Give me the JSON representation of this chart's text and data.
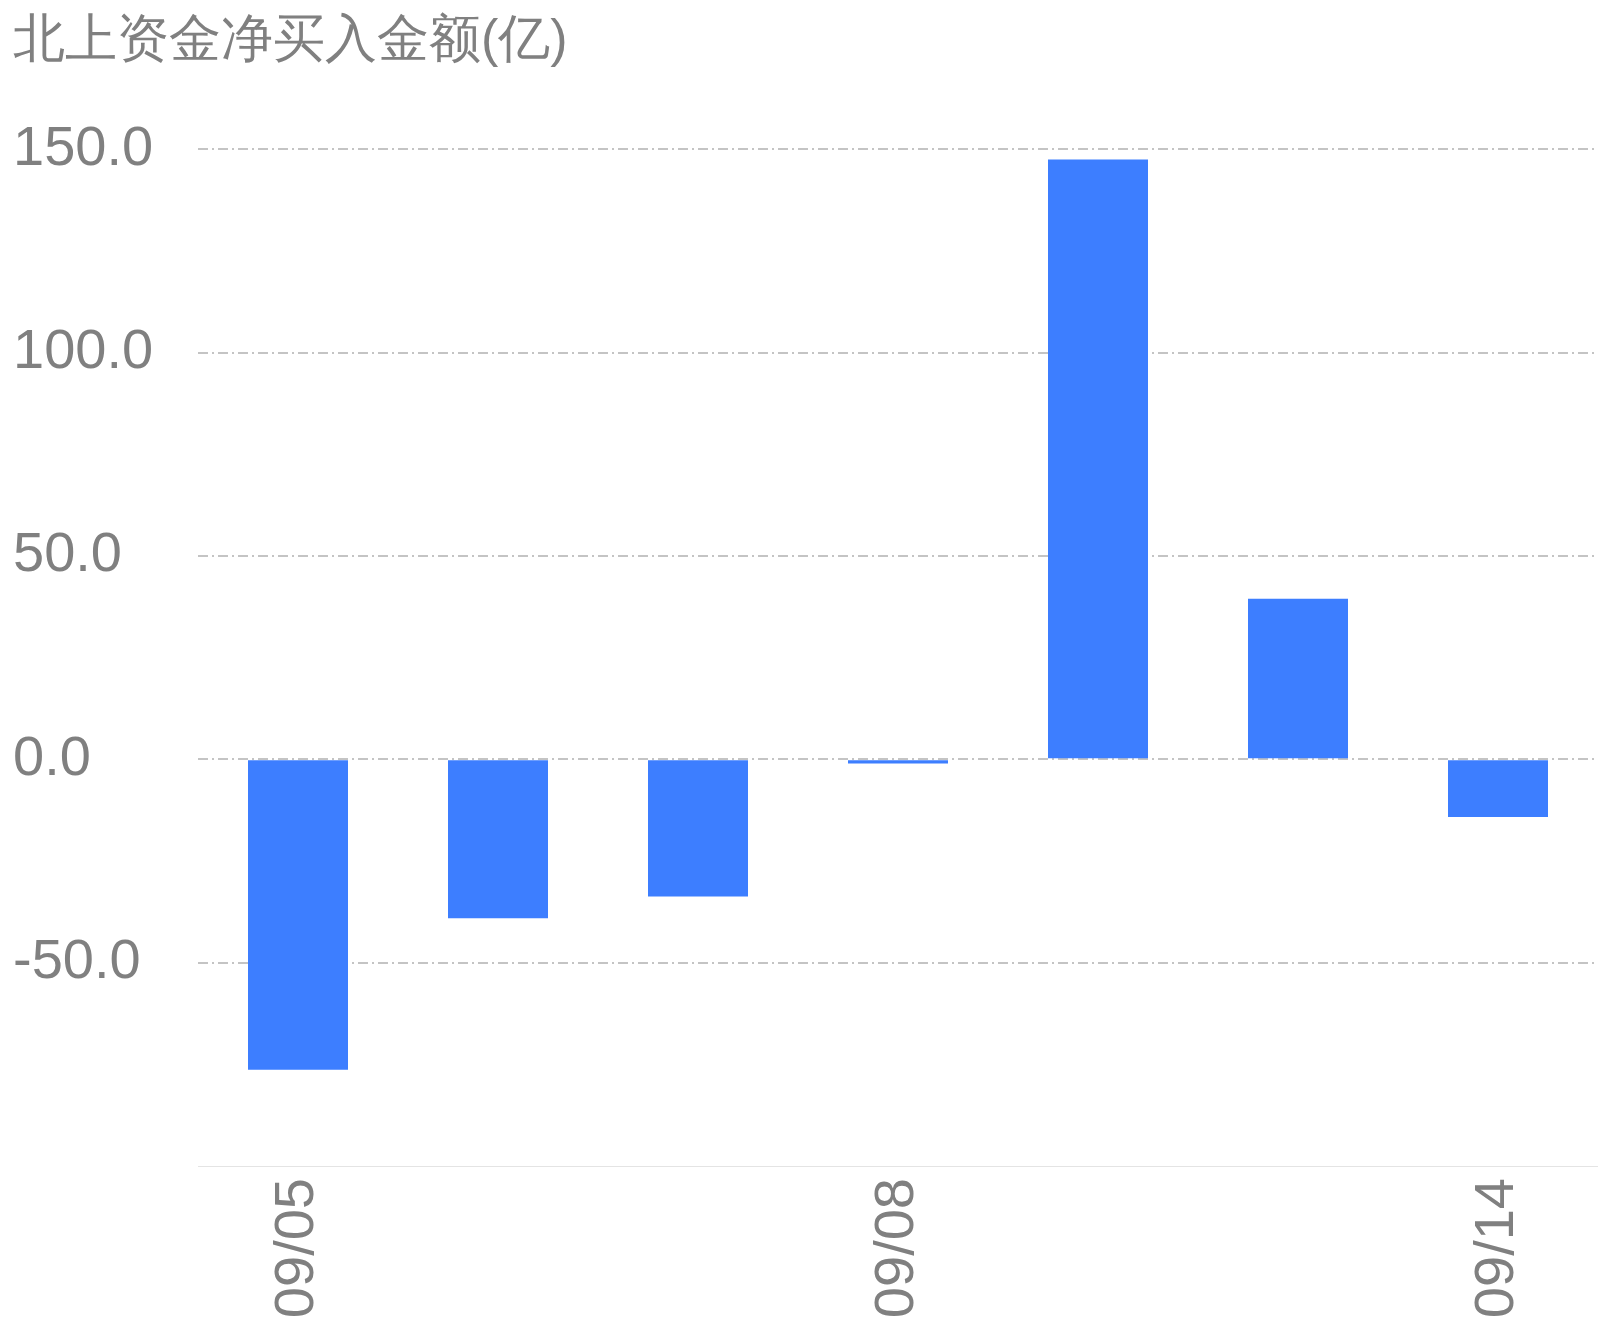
{
  "chart_data": {
    "type": "bar",
    "title": "北上资金净买入金额(亿)",
    "categories": [
      "09/05",
      null,
      null,
      "09/08",
      null,
      null,
      "09/14"
    ],
    "values": [
      -76.3,
      -39.1,
      -33.7,
      -1.0,
      147.5,
      39.5,
      -14.2
    ],
    "color": "#3d7eff",
    "ylim": [
      -100,
      150
    ],
    "yticks": [
      {
        "value": -50,
        "label": "-50.0"
      },
      {
        "value": 0,
        "label": "0.0"
      },
      {
        "value": 50,
        "label": "50.0"
      },
      {
        "value": 100,
        "label": "100.0"
      },
      {
        "value": 150,
        "label": "150.0"
      }
    ],
    "grid": "y"
  }
}
